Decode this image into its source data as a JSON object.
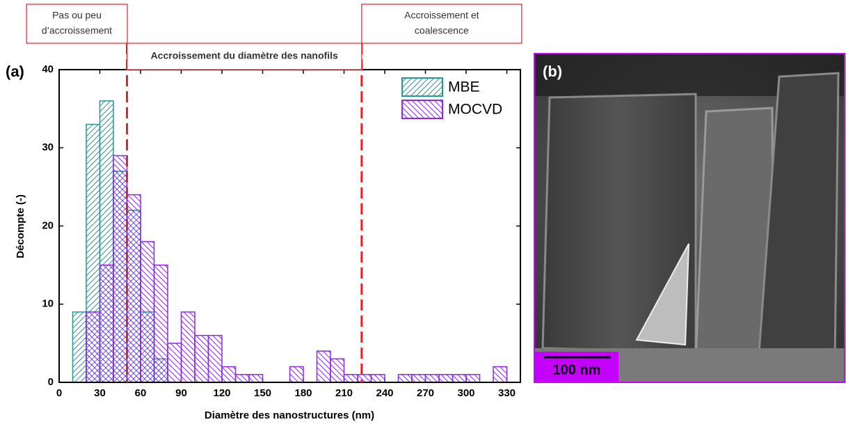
{
  "chart_data": {
    "type": "histogram",
    "panel_label": "(a)",
    "x_label": "Diamètre des nanostructures (nm)",
    "y_label": "Décompte (-)",
    "bins": [
      10,
      20,
      30,
      40,
      50,
      60,
      70,
      80,
      90,
      100,
      110,
      120,
      130,
      140,
      150,
      160,
      170,
      180,
      190,
      200,
      210,
      220,
      230,
      240,
      250,
      260,
      270,
      280,
      290,
      300,
      310,
      320,
      330
    ],
    "series": [
      {
        "name": "MBE",
        "color": "#1f9a96",
        "hatch": "/",
        "values": [
          9,
          33,
          36,
          27,
          22,
          9,
          3,
          0,
          0,
          0,
          0,
          0,
          0,
          0,
          0,
          0,
          0,
          0,
          0,
          0,
          0,
          0,
          0,
          0,
          0,
          0,
          0,
          0,
          0,
          0,
          0,
          0
        ]
      },
      {
        "name": "MOCVD",
        "color": "#8a2be2",
        "hatch": "\\",
        "values": [
          0,
          9,
          15,
          29,
          24,
          18,
          15,
          5,
          9,
          6,
          6,
          2,
          1,
          1,
          0,
          0,
          2,
          0,
          4,
          3,
          1,
          1,
          1,
          0,
          1,
          1,
          1,
          1,
          1,
          1,
          0,
          2
        ]
      }
    ],
    "xlim": [
      0,
      340
    ],
    "ylim": [
      0,
      40
    ],
    "xticks": [
      0,
      30,
      60,
      90,
      120,
      150,
      180,
      210,
      240,
      270,
      300,
      330
    ],
    "yticks": [
      0,
      10,
      20,
      30,
      40
    ],
    "thresholds": [
      50,
      223
    ],
    "threshold_color": "#e8212a",
    "legend": "top-right",
    "annotations": [
      {
        "lines": [
          "Pas ou peu",
          "d’accroissement"
        ]
      },
      {
        "lines": [
          "Accroissement du diamètre des nanofils"
        ]
      },
      {
        "lines": [
          "Accroissement et",
          "coalescence"
        ]
      }
    ]
  },
  "panel_b": {
    "label": "(b)",
    "scale_bar": "100 nm"
  }
}
